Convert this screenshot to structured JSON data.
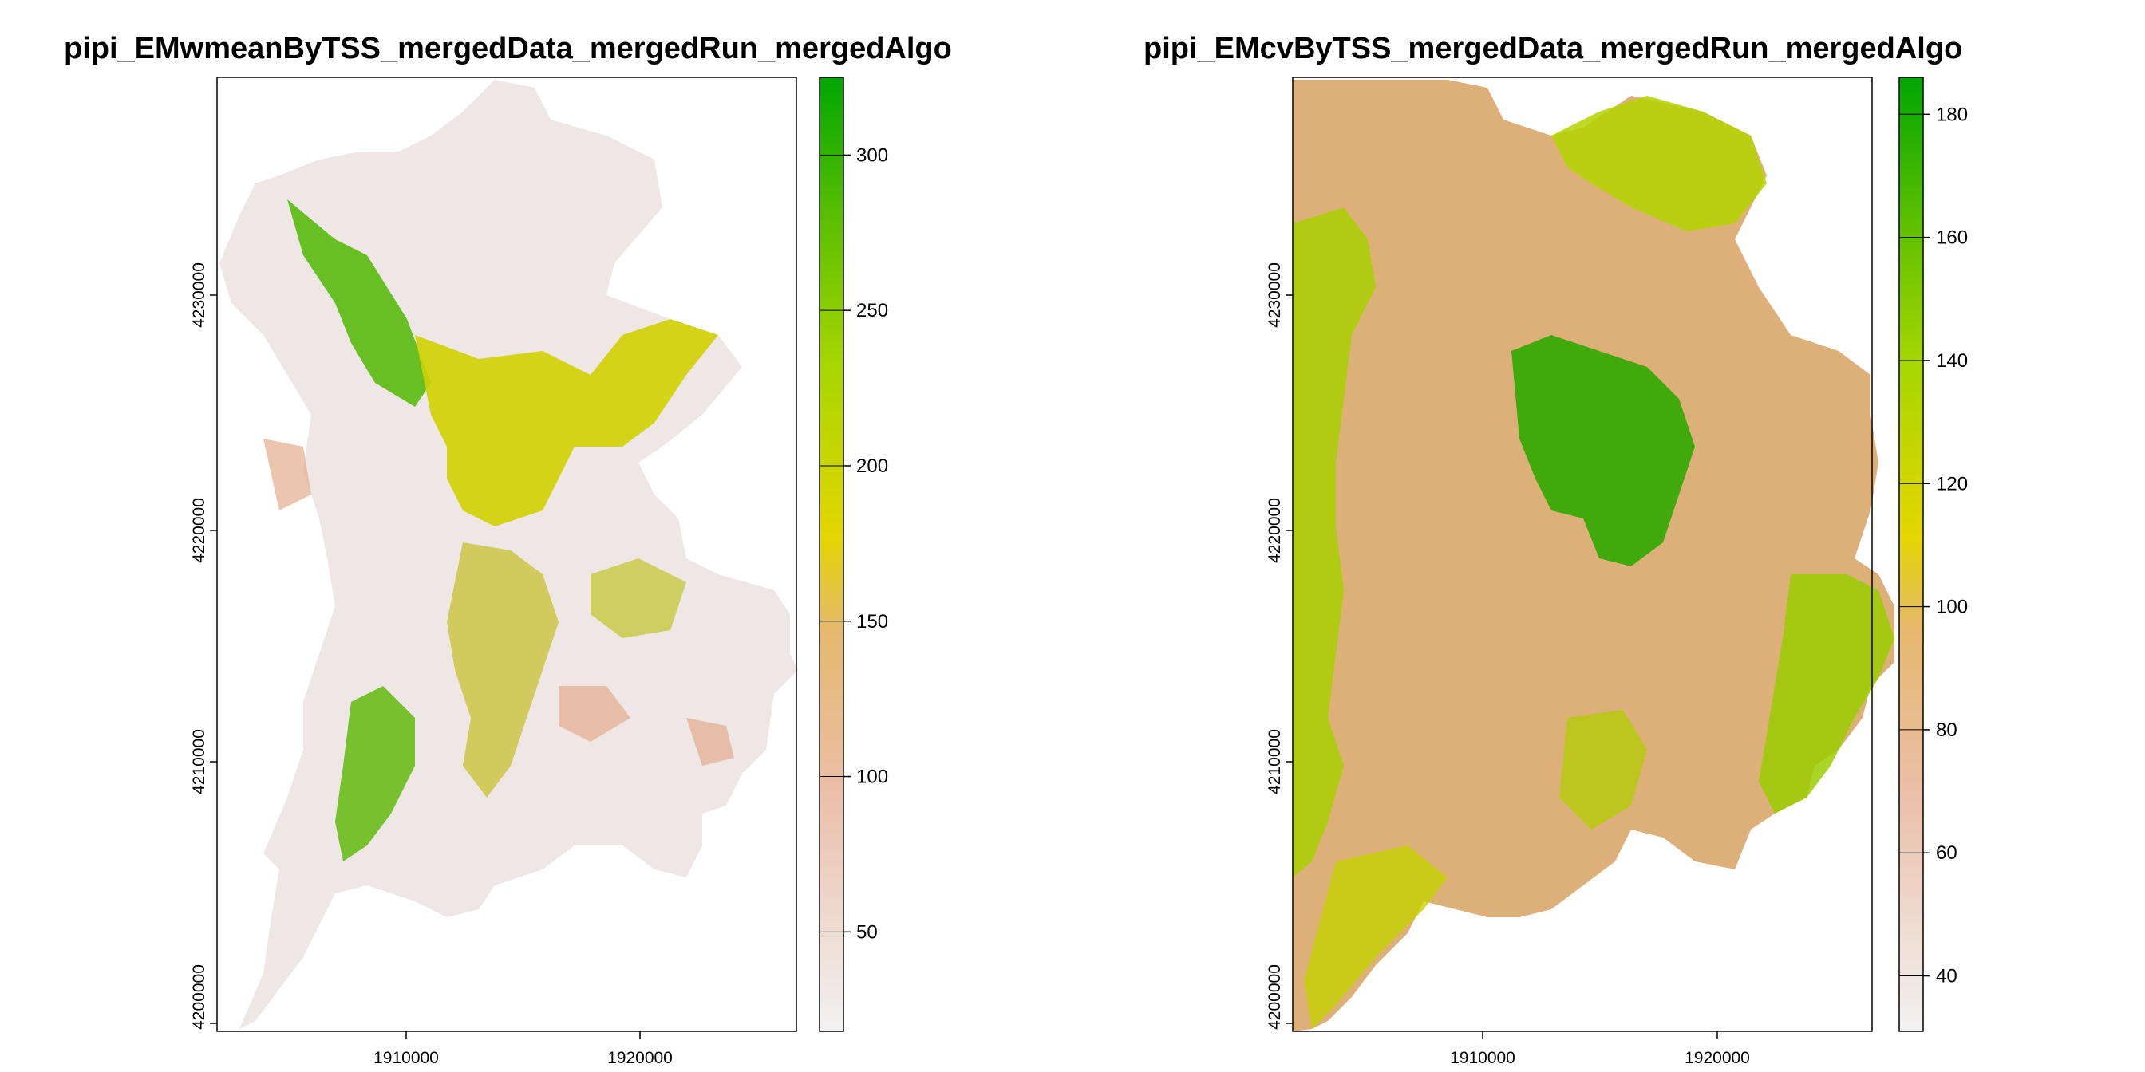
{
  "maps": [
    {
      "title": "pipi_EMwmeanByTSS_mergedData_mergedRun_mergedAlgo",
      "x_ticks": [
        "1910000",
        "1920000"
      ],
      "y_ticks": [
        "4200000",
        "4210000",
        "4220000",
        "4230000"
      ],
      "legend": {
        "ticks": [
          "50",
          "100",
          "150",
          "200",
          "250",
          "300"
        ],
        "tick_values": [
          50,
          100,
          150,
          200,
          250,
          300
        ],
        "min": 18,
        "max": 325
      },
      "colors": {
        "low": "#f2f2f2",
        "mid_low": "#e8b496",
        "mid": "#e6d400",
        "mid_high": "#8fcf00",
        "high": "#00a600"
      }
    },
    {
      "title": "pipi_EMcvByTSS_mergedData_mergedRun_mergedAlgo",
      "x_ticks": [
        "1910000",
        "1920000"
      ],
      "y_ticks": [
        "4200000",
        "4210000",
        "4220000",
        "4230000"
      ],
      "legend": {
        "ticks": [
          "40",
          "60",
          "80",
          "100",
          "120",
          "140",
          "160",
          "180"
        ],
        "tick_values": [
          40,
          60,
          80,
          100,
          120,
          140,
          160,
          180
        ],
        "min": 31,
        "max": 186
      },
      "colors": {
        "low": "#f2f2f2",
        "mid_low": "#e8b496",
        "mid": "#e6d400",
        "mid_high": "#8fcf00",
        "high": "#00a600"
      }
    }
  ]
}
